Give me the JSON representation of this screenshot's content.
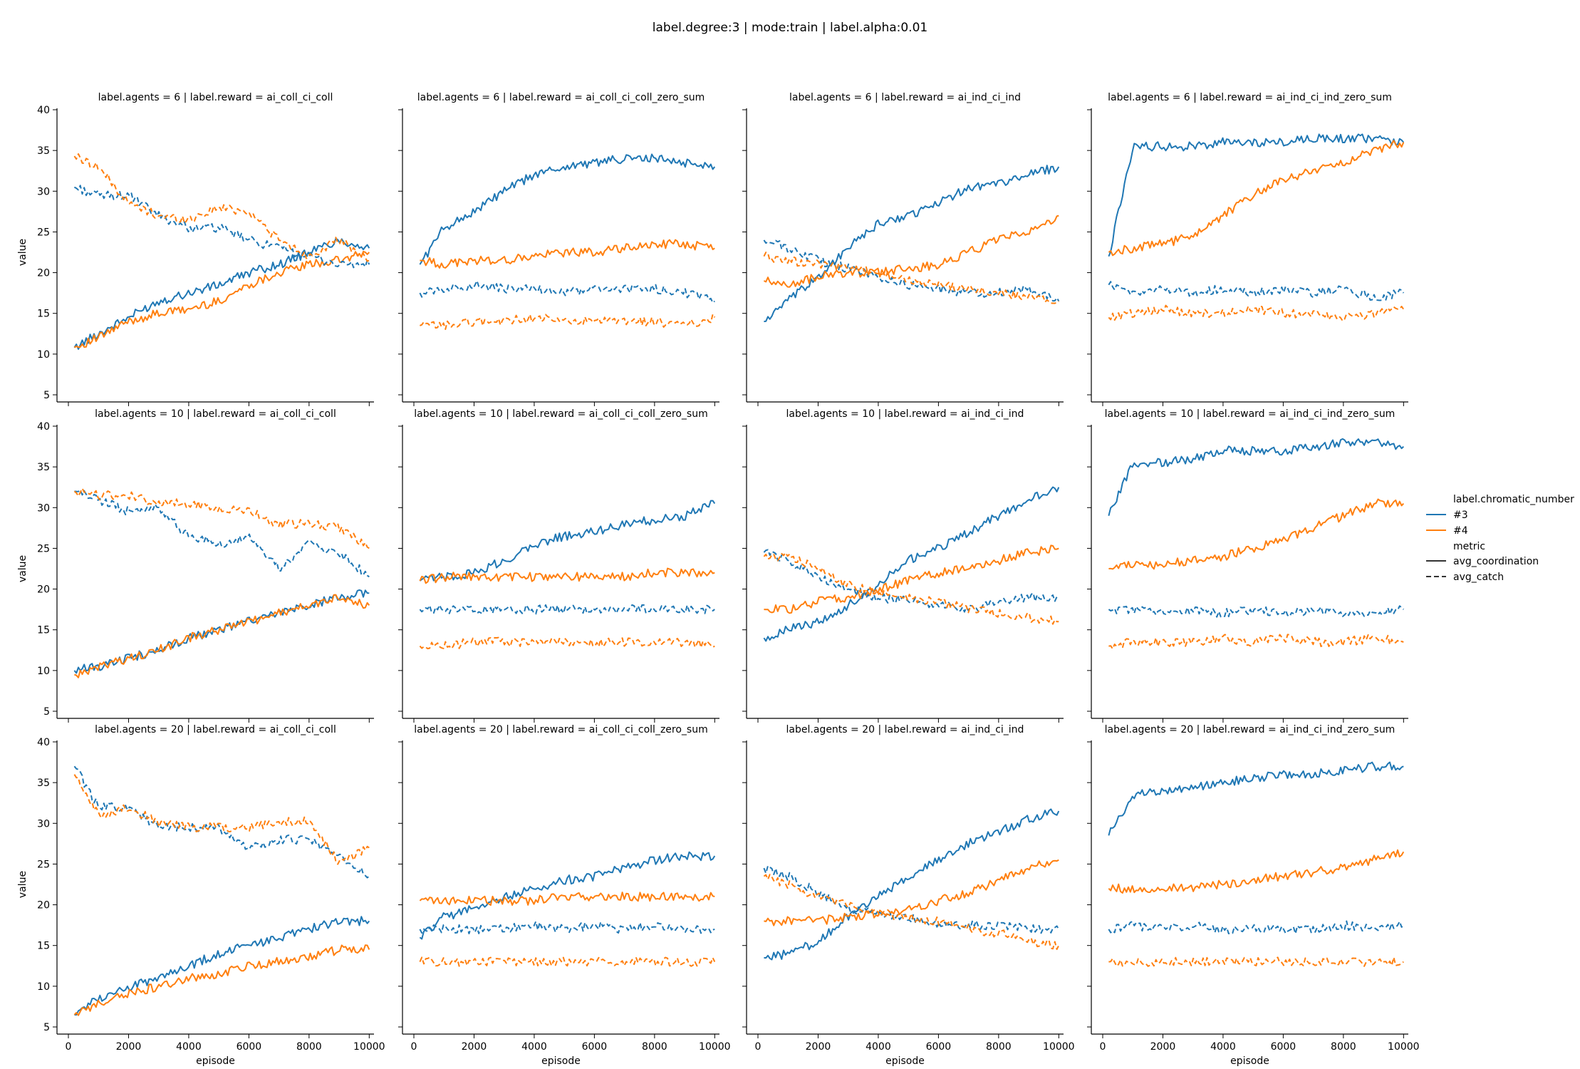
{
  "figure_title": "label.degree:3 | mode:train | label.alpha:0.01",
  "legend": {
    "hue_title": "label.chromatic_number",
    "hue_entries": [
      {
        "label": "#3",
        "color": "#1f77b4"
      },
      {
        "label": "#4",
        "color": "#ff7f0e"
      }
    ],
    "style_title": "metric",
    "style_entries": [
      {
        "label": "avg_coordination",
        "dash": "solid"
      },
      {
        "label": "avg_catch",
        "dash": "dashed"
      }
    ]
  },
  "chart_data": {
    "type": "line",
    "layout": "facet-grid 3 rows x 4 columns, shared axes",
    "xlabel": "episode",
    "ylabel": "value",
    "xlim": [
      0,
      10000
    ],
    "ylim": [
      5,
      40
    ],
    "xticks": [
      0,
      2000,
      4000,
      6000,
      8000,
      10000
    ],
    "yticks": [
      5,
      10,
      15,
      20,
      25,
      30,
      35,
      40
    ],
    "grid": false,
    "legend_position": "right",
    "x": [
      200,
      1000,
      2000,
      3000,
      4000,
      5000,
      6000,
      7000,
      8000,
      9000,
      10000
    ],
    "panels": [
      {
        "title": "label.agents = 6 | label.reward = ai_coll_ci_coll",
        "series": [
          {
            "chromatic_number": "#3",
            "metric": "avg_coordination",
            "values": [
              10.8,
              12.5,
              14.5,
              16.5,
              17.5,
              18.5,
              20,
              21,
              22.5,
              24,
              23
            ]
          },
          {
            "chromatic_number": "#4",
            "metric": "avg_coordination",
            "values": [
              10.8,
              12,
              14,
              15,
              15.5,
              16.5,
              18.5,
              20,
              21,
              21.5,
              22.5
            ]
          },
          {
            "chromatic_number": "#3",
            "metric": "avg_catch",
            "values": [
              30.5,
              29.5,
              29.5,
              27,
              25.5,
              25.5,
              24,
              23,
              22,
              21,
              21
            ]
          },
          {
            "chromatic_number": "#4",
            "metric": "avg_catch",
            "values": [
              34.3,
              33,
              28.5,
              27,
              26.5,
              28,
              27.5,
              24,
              22,
              24,
              21.5
            ]
          }
        ]
      },
      {
        "title": "label.agents = 6 | label.reward = ai_coll_ci_coll_zero_sum",
        "series": [
          {
            "chromatic_number": "#3",
            "metric": "avg_coordination",
            "values": [
              21,
              25.5,
              27.5,
              30,
              32,
              33,
              33.5,
              34,
              34,
              33.5,
              33
            ]
          },
          {
            "chromatic_number": "#4",
            "metric": "avg_coordination",
            "values": [
              21.5,
              21,
              21.5,
              21.5,
              22,
              22.5,
              22.5,
              23,
              23.5,
              23.5,
              23
            ]
          },
          {
            "chromatic_number": "#3",
            "metric": "avg_catch",
            "values": [
              17.5,
              18,
              18.5,
              18,
              18,
              17.5,
              18,
              18,
              18,
              17.5,
              16.5
            ]
          },
          {
            "chromatic_number": "#4",
            "metric": "avg_catch",
            "values": [
              13.5,
              13.5,
              14,
              14,
              14.5,
              14,
              14,
              14,
              14,
              13.5,
              14.5
            ]
          }
        ]
      },
      {
        "title": "label.agents = 6 | label.reward = ai_ind_ci_ind",
        "series": [
          {
            "chromatic_number": "#3",
            "metric": "avg_coordination",
            "values": [
              14,
              16.5,
              19.5,
              23,
              26,
              27,
              28.5,
              30.5,
              31,
              32,
              33
            ]
          },
          {
            "chromatic_number": "#4",
            "metric": "avg_coordination",
            "values": [
              19,
              18.5,
              19.5,
              20,
              20,
              20.5,
              21,
              22.5,
              24,
              25,
              27
            ]
          },
          {
            "chromatic_number": "#3",
            "metric": "avg_catch",
            "values": [
              24,
              23,
              21.5,
              20.5,
              19.5,
              18.5,
              18,
              17.5,
              17.5,
              18,
              16.5
            ]
          },
          {
            "chromatic_number": "#4",
            "metric": "avg_catch",
            "values": [
              22,
              21.5,
              21,
              20.5,
              20,
              19,
              18.5,
              18,
              17.5,
              17,
              16.5
            ]
          }
        ]
      },
      {
        "title": "label.agents = 6 | label.reward = ai_ind_ci_ind_zero_sum",
        "series": [
          {
            "chromatic_number": "#3",
            "metric": "avg_coordination",
            "values": [
              22,
              35.5,
              35.5,
              35.5,
              36,
              36,
              36,
              36.5,
              36.5,
              36.5,
              36
            ]
          },
          {
            "chromatic_number": "#4",
            "metric": "avg_coordination",
            "values": [
              22.5,
              23,
              23.5,
              24.5,
              27,
              29.5,
              31.5,
              32.5,
              33.5,
              35,
              36
            ]
          },
          {
            "chromatic_number": "#3",
            "metric": "avg_catch",
            "values": [
              18.5,
              17.5,
              18,
              17.5,
              18,
              17.5,
              18,
              17.5,
              18,
              17,
              17.5
            ]
          },
          {
            "chromatic_number": "#4",
            "metric": "avg_catch",
            "values": [
              14.5,
              15,
              15.5,
              15,
              15,
              15.5,
              15,
              15,
              14.5,
              15,
              15.5
            ]
          }
        ]
      },
      {
        "title": "label.agents = 10 | label.reward = ai_coll_ci_coll",
        "series": [
          {
            "chromatic_number": "#3",
            "metric": "avg_coordination",
            "values": [
              10,
              10.5,
              11.5,
              12.5,
              14,
              15,
              16,
              17,
              18,
              19,
              19.5
            ]
          },
          {
            "chromatic_number": "#4",
            "metric": "avg_coordination",
            "values": [
              9.5,
              10.5,
              11.5,
              12.5,
              14,
              15,
              16,
              17,
              18,
              19,
              18
            ]
          },
          {
            "chromatic_number": "#3",
            "metric": "avg_catch",
            "values": [
              32,
              31,
              29.5,
              30,
              26.5,
              25.5,
              26.5,
              22.5,
              25.5,
              24.5,
              21.5
            ]
          },
          {
            "chromatic_number": "#4",
            "metric": "avg_catch",
            "values": [
              32,
              31.5,
              31.5,
              30.5,
              30.5,
              30,
              29.5,
              28,
              28,
              27.5,
              25
            ]
          }
        ]
      },
      {
        "title": "label.agents = 10 | label.reward = ai_coll_ci_coll_zero_sum",
        "series": [
          {
            "chromatic_number": "#3",
            "metric": "avg_coordination",
            "values": [
              21,
              21.5,
              22,
              23.5,
              25.5,
              26.5,
              27,
              28,
              28.5,
              29,
              30.5
            ]
          },
          {
            "chromatic_number": "#4",
            "metric": "avg_coordination",
            "values": [
              21,
              21.5,
              21.5,
              21.5,
              21.5,
              21.5,
              21.5,
              21.5,
              22,
              22,
              22
            ]
          },
          {
            "chromatic_number": "#3",
            "metric": "avg_catch",
            "values": [
              17.5,
              17.5,
              17.5,
              17.5,
              17.5,
              17.5,
              17.5,
              17.5,
              17.5,
              17.5,
              17.5
            ]
          },
          {
            "chromatic_number": "#4",
            "metric": "avg_catch",
            "values": [
              13,
              13,
              13.5,
              13.5,
              13.5,
              13.5,
              13.5,
              13.5,
              13.5,
              13.5,
              13
            ]
          }
        ]
      },
      {
        "title": "label.agents = 10 | label.reward = ai_ind_ci_ind",
        "series": [
          {
            "chromatic_number": "#3",
            "metric": "avg_coordination",
            "values": [
              14,
              15,
              16,
              18,
              20.5,
              23.5,
              25,
              27,
              29,
              31,
              32.5
            ]
          },
          {
            "chromatic_number": "#4",
            "metric": "avg_coordination",
            "values": [
              17.5,
              17.5,
              18.5,
              19,
              20,
              21,
              22,
              22.5,
              23.5,
              24.5,
              25
            ]
          },
          {
            "chromatic_number": "#3",
            "metric": "avg_catch",
            "values": [
              24.5,
              23.5,
              21.5,
              20,
              19,
              18.5,
              18,
              17.5,
              18.5,
              19,
              19
            ]
          },
          {
            "chromatic_number": "#4",
            "metric": "avg_catch",
            "values": [
              24,
              24,
              22.5,
              20.5,
              19.5,
              19,
              18.5,
              17.5,
              17,
              16.5,
              16
            ]
          }
        ]
      },
      {
        "title": "label.agents = 10 | label.reward = ai_ind_ci_ind_zero_sum",
        "series": [
          {
            "chromatic_number": "#3",
            "metric": "avg_coordination",
            "values": [
              29,
              35.5,
              35.5,
              36,
              37,
              37,
              37,
              37.5,
              38,
              38,
              37.5
            ]
          },
          {
            "chromatic_number": "#4",
            "metric": "avg_coordination",
            "values": [
              22.5,
              23,
              23,
              23.5,
              24,
              25,
              26,
              27.5,
              29,
              30.5,
              30.5
            ]
          },
          {
            "chromatic_number": "#3",
            "metric": "avg_catch",
            "values": [
              17.5,
              17.5,
              17,
              17.5,
              17,
              17.5,
              17,
              17.5,
              17,
              17,
              17.5
            ]
          },
          {
            "chromatic_number": "#4",
            "metric": "avg_catch",
            "values": [
              13,
              13.5,
              13.5,
              13.5,
              14,
              13.5,
              14,
              13.5,
              13.5,
              14,
              13.5
            ]
          }
        ]
      },
      {
        "title": "label.agents = 20 | label.reward = ai_coll_ci_coll",
        "series": [
          {
            "chromatic_number": "#3",
            "metric": "avg_coordination",
            "values": [
              6.5,
              8.5,
              10,
              11,
              12.5,
              14,
              15,
              16,
              17,
              18,
              18
            ]
          },
          {
            "chromatic_number": "#4",
            "metric": "avg_coordination",
            "values": [
              6.5,
              8,
              9,
              10,
              11,
              11.5,
              12.5,
              13,
              13.5,
              14.5,
              14.5
            ]
          },
          {
            "chromatic_number": "#3",
            "metric": "avg_catch",
            "values": [
              37,
              32,
              32,
              29.5,
              29.5,
              29.5,
              27,
              28,
              28,
              26,
              23.5
            ]
          },
          {
            "chromatic_number": "#4",
            "metric": "avg_catch",
            "values": [
              36,
              31,
              32,
              30,
              29.5,
              29.5,
              29.5,
              30,
              30.5,
              25,
              27
            ]
          }
        ]
      },
      {
        "title": "label.agents = 20 | label.reward = ai_coll_ci_coll_zero_sum",
        "series": [
          {
            "chromatic_number": "#3",
            "metric": "avg_coordination",
            "values": [
              16,
              18.5,
              19.5,
              21,
              22,
              23,
              23.5,
              24.5,
              25.5,
              26,
              26
            ]
          },
          {
            "chromatic_number": "#4",
            "metric": "avg_coordination",
            "values": [
              20.5,
              20.5,
              20.5,
              20.5,
              20.5,
              21,
              21,
              21,
              21,
              21,
              21
            ]
          },
          {
            "chromatic_number": "#3",
            "metric": "avg_catch",
            "values": [
              17,
              17,
              17,
              17,
              17.5,
              17,
              17.5,
              17,
              17.5,
              17,
              17
            ]
          },
          {
            "chromatic_number": "#4",
            "metric": "avg_catch",
            "values": [
              13,
              13,
              13,
              13,
              13,
              13,
              13,
              13,
              13,
              13,
              13
            ]
          }
        ]
      },
      {
        "title": "label.agents = 20 | label.reward = ai_ind_ci_ind",
        "series": [
          {
            "chromatic_number": "#3",
            "metric": "avg_coordination",
            "values": [
              13.5,
              14,
              15.5,
              18.5,
              21,
              23.5,
              25.5,
              27.5,
              29,
              30.5,
              31.5
            ]
          },
          {
            "chromatic_number": "#4",
            "metric": "avg_coordination",
            "values": [
              18,
              18,
              18,
              18.5,
              19,
              19.5,
              20.5,
              21.5,
              23,
              24.5,
              25.5
            ]
          },
          {
            "chromatic_number": "#3",
            "metric": "avg_catch",
            "values": [
              24.5,
              23.5,
              21.5,
              19.5,
              19,
              18.5,
              17.5,
              17.5,
              17.5,
              17,
              17
            ]
          },
          {
            "chromatic_number": "#4",
            "metric": "avg_catch",
            "values": [
              23.5,
              22.5,
              21,
              20,
              19,
              18.5,
              18,
              17,
              16.5,
              15.5,
              15
            ]
          }
        ]
      },
      {
        "title": "label.agents = 20 | label.reward = ai_ind_ci_ind_zero_sum",
        "series": [
          {
            "chromatic_number": "#3",
            "metric": "avg_coordination",
            "values": [
              28.5,
              33.5,
              34,
              34.5,
              35,
              35.5,
              36,
              36,
              36.5,
              37,
              37
            ]
          },
          {
            "chromatic_number": "#4",
            "metric": "avg_coordination",
            "values": [
              22,
              22,
              22,
              22,
              22.5,
              23,
              23.5,
              24,
              24.5,
              25.5,
              26.5
            ]
          },
          {
            "chromatic_number": "#3",
            "metric": "avg_catch",
            "values": [
              17,
              17.5,
              17,
              17.5,
              17,
              17,
              17,
              17,
              17.5,
              17,
              17.5
            ]
          },
          {
            "chromatic_number": "#4",
            "metric": "avg_catch",
            "values": [
              13,
              13,
              13,
              13,
              13,
              13,
              13,
              13,
              13,
              13,
              13
            ]
          }
        ]
      }
    ]
  }
}
